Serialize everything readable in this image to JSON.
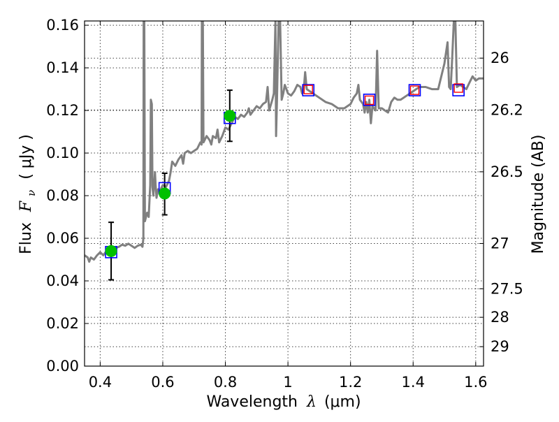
{
  "chart_data": {
    "type": "scatter",
    "xlabel": "Wavelength",
    "xlabel_lambda": "λ",
    "xlabel_unit": "(μm)",
    "ylabel": "Flux",
    "ylabel_symbol": "F",
    "ylabel_subscript": "ν",
    "ylabel_unit": "( μJy )",
    "y2label": "Magnitude (AB)",
    "xlim": [
      0.35,
      1.625
    ],
    "ylim": [
      0.0,
      0.162
    ],
    "xticks": [
      0.4,
      0.6,
      0.8,
      1.0,
      1.2,
      1.4,
      1.6
    ],
    "xtick_labels": [
      "0.4",
      "0.6",
      "0.8",
      "1",
      "1.2",
      "1.4",
      "1.6"
    ],
    "yticks": [
      0.0,
      0.02,
      0.04,
      0.06,
      0.08,
      0.1,
      0.12,
      0.14,
      0.16
    ],
    "ytick_labels": [
      "0.00",
      "0.02",
      "0.04",
      "0.06",
      "0.08",
      "0.10",
      "0.12",
      "0.14",
      "0.16"
    ],
    "y2ticks": [
      26,
      26.2,
      26.5,
      27,
      27.5,
      28,
      29
    ],
    "y2tick_labels": [
      "26",
      "26.2",
      "26.5",
      "27",
      "27.5",
      "28",
      "29"
    ],
    "grid": true,
    "colors": {
      "spectrum": "#808080",
      "observed": "#00c000",
      "model_box": "#0000ff",
      "ir_box": "#ff0000",
      "errorbar": "#000000"
    },
    "observed": [
      {
        "x": 0.435,
        "y": 0.054,
        "yerr_low": 0.0405,
        "yerr_high": 0.0675
      },
      {
        "x": 0.606,
        "y": 0.081,
        "yerr_low": 0.071,
        "yerr_high": 0.0905
      },
      {
        "x": 0.814,
        "y": 0.1175,
        "yerr_low": 0.1055,
        "yerr_high": 0.1295
      }
    ],
    "model_bands": [
      {
        "x": 0.435,
        "y": 0.0535
      },
      {
        "x": 0.606,
        "y": 0.0835
      },
      {
        "x": 0.814,
        "y": 0.1165
      },
      {
        "x": 1.065,
        "y": 0.1295
      },
      {
        "x": 1.26,
        "y": 0.125
      },
      {
        "x": 1.405,
        "y": 0.1295
      },
      {
        "x": 1.545,
        "y": 0.1295
      }
    ],
    "ir_bands": [
      {
        "x": 1.065,
        "y": 0.1298
      },
      {
        "x": 1.26,
        "y": 0.1248
      },
      {
        "x": 1.405,
        "y": 0.1295
      },
      {
        "x": 1.545,
        "y": 0.1305
      }
    ],
    "spectrum": [
      [
        0.35,
        0.052
      ],
      [
        0.36,
        0.051
      ],
      [
        0.365,
        0.049
      ],
      [
        0.37,
        0.051
      ],
      [
        0.38,
        0.05
      ],
      [
        0.39,
        0.052
      ],
      [
        0.4,
        0.0535
      ],
      [
        0.41,
        0.052
      ],
      [
        0.42,
        0.054
      ],
      [
        0.43,
        0.053
      ],
      [
        0.44,
        0.0555
      ],
      [
        0.45,
        0.0555
      ],
      [
        0.46,
        0.056
      ],
      [
        0.47,
        0.057
      ],
      [
        0.48,
        0.0565
      ],
      [
        0.49,
        0.0575
      ],
      [
        0.5,
        0.0565
      ],
      [
        0.51,
        0.0555
      ],
      [
        0.52,
        0.0565
      ],
      [
        0.53,
        0.057
      ],
      [
        0.535,
        0.056
      ],
      [
        0.538,
        0.06
      ],
      [
        0.539,
        0.162
      ],
      [
        0.541,
        0.162
      ],
      [
        0.543,
        0.068
      ],
      [
        0.55,
        0.072
      ],
      [
        0.555,
        0.07
      ],
      [
        0.56,
        0.085
      ],
      [
        0.562,
        0.125
      ],
      [
        0.565,
        0.123
      ],
      [
        0.567,
        0.084
      ],
      [
        0.57,
        0.08
      ],
      [
        0.575,
        0.091
      ],
      [
        0.577,
        0.085
      ],
      [
        0.58,
        0.079
      ],
      [
        0.585,
        0.083
      ],
      [
        0.59,
        0.082
      ],
      [
        0.6,
        0.085
      ],
      [
        0.61,
        0.084
      ],
      [
        0.62,
        0.087
      ],
      [
        0.625,
        0.091
      ],
      [
        0.63,
        0.096
      ],
      [
        0.64,
        0.094
      ],
      [
        0.65,
        0.097
      ],
      [
        0.66,
        0.099
      ],
      [
        0.665,
        0.095
      ],
      [
        0.67,
        0.1
      ],
      [
        0.68,
        0.101
      ],
      [
        0.69,
        0.1
      ],
      [
        0.7,
        0.101
      ],
      [
        0.71,
        0.102
      ],
      [
        0.72,
        0.105
      ],
      [
        0.724,
        0.104
      ],
      [
        0.725,
        0.162
      ],
      [
        0.728,
        0.162
      ],
      [
        0.73,
        0.105
      ],
      [
        0.74,
        0.108
      ],
      [
        0.75,
        0.106
      ],
      [
        0.755,
        0.104
      ],
      [
        0.76,
        0.108
      ],
      [
        0.77,
        0.107
      ],
      [
        0.775,
        0.111
      ],
      [
        0.78,
        0.105
      ],
      [
        0.79,
        0.108
      ],
      [
        0.8,
        0.112
      ],
      [
        0.81,
        0.111
      ],
      [
        0.82,
        0.114
      ],
      [
        0.83,
        0.117
      ],
      [
        0.84,
        0.116
      ],
      [
        0.85,
        0.118
      ],
      [
        0.86,
        0.117
      ],
      [
        0.87,
        0.119
      ],
      [
        0.875,
        0.121
      ],
      [
        0.88,
        0.118
      ],
      [
        0.89,
        0.12
      ],
      [
        0.9,
        0.122
      ],
      [
        0.91,
        0.121
      ],
      [
        0.92,
        0.123
      ],
      [
        0.93,
        0.124
      ],
      [
        0.935,
        0.131
      ],
      [
        0.94,
        0.12
      ],
      [
        0.95,
        0.125
      ],
      [
        0.955,
        0.128
      ],
      [
        0.96,
        0.162
      ],
      [
        0.962,
        0.108
      ],
      [
        0.965,
        0.125
      ],
      [
        0.97,
        0.162
      ],
      [
        0.975,
        0.162
      ],
      [
        0.98,
        0.125
      ],
      [
        0.985,
        0.128
      ],
      [
        0.99,
        0.132
      ],
      [
        1.0,
        0.128
      ],
      [
        1.01,
        0.127
      ],
      [
        1.02,
        0.129
      ],
      [
        1.03,
        0.132
      ],
      [
        1.04,
        0.131
      ],
      [
        1.045,
        0.128
      ],
      [
        1.05,
        0.129
      ],
      [
        1.055,
        0.138
      ],
      [
        1.06,
        0.13
      ],
      [
        1.07,
        0.129
      ],
      [
        1.08,
        0.128
      ],
      [
        1.09,
        0.127
      ],
      [
        1.1,
        0.126
      ],
      [
        1.12,
        0.124
      ],
      [
        1.14,
        0.123
      ],
      [
        1.16,
        0.121
      ],
      [
        1.18,
        0.121
      ],
      [
        1.2,
        0.123
      ],
      [
        1.21,
        0.126
      ],
      [
        1.22,
        0.128
      ],
      [
        1.225,
        0.132
      ],
      [
        1.23,
        0.125
      ],
      [
        1.24,
        0.123
      ],
      [
        1.245,
        0.119
      ],
      [
        1.25,
        0.124
      ],
      [
        1.255,
        0.119
      ],
      [
        1.26,
        0.125
      ],
      [
        1.265,
        0.114
      ],
      [
        1.27,
        0.122
      ],
      [
        1.28,
        0.12
      ],
      [
        1.285,
        0.148
      ],
      [
        1.29,
        0.121
      ],
      [
        1.3,
        0.121
      ],
      [
        1.31,
        0.12
      ],
      [
        1.32,
        0.119
      ],
      [
        1.33,
        0.124
      ],
      [
        1.34,
        0.126
      ],
      [
        1.35,
        0.125
      ],
      [
        1.36,
        0.125
      ],
      [
        1.37,
        0.126
      ],
      [
        1.38,
        0.127
      ],
      [
        1.39,
        0.128
      ],
      [
        1.4,
        0.129
      ],
      [
        1.42,
        0.131
      ],
      [
        1.44,
        0.131
      ],
      [
        1.46,
        0.13
      ],
      [
        1.48,
        0.13
      ],
      [
        1.5,
        0.142
      ],
      [
        1.51,
        0.152
      ],
      [
        1.515,
        0.131
      ],
      [
        1.52,
        0.13
      ],
      [
        1.525,
        0.145
      ],
      [
        1.53,
        0.162
      ],
      [
        1.535,
        0.162
      ],
      [
        1.54,
        0.131
      ],
      [
        1.55,
        0.132
      ],
      [
        1.56,
        0.131
      ],
      [
        1.57,
        0.13
      ],
      [
        1.58,
        0.133
      ],
      [
        1.59,
        0.136
      ],
      [
        1.6,
        0.134
      ],
      [
        1.61,
        0.135
      ],
      [
        1.625,
        0.135
      ]
    ]
  }
}
